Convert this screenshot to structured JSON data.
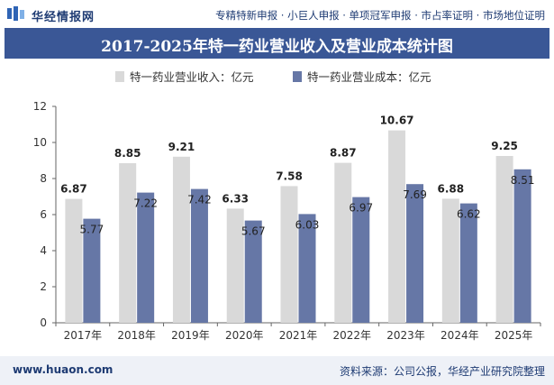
{
  "header": {
    "logo_text": "华经情报网",
    "tagline": "专精特新申报 · 小巨人申报 · 单项冠军申报 · 市占率证明 · 市场地位证明"
  },
  "chart_data": {
    "type": "bar",
    "title": "2017-2025年特一药业营业收入及营业成本统计图",
    "categories": [
      "2017年",
      "2018年",
      "2019年",
      "2020年",
      "2021年",
      "2022年",
      "2023年",
      "2024年",
      "2025年"
    ],
    "series": [
      {
        "name": "特一药业营业收入：亿元",
        "color": "#d9d9d9",
        "values": [
          6.87,
          8.85,
          9.21,
          6.33,
          7.58,
          8.87,
          10.67,
          6.88,
          9.25
        ]
      },
      {
        "name": "特一药业营业成本：亿元",
        "color": "#6677a6",
        "values": [
          5.77,
          7.22,
          7.42,
          5.67,
          6.03,
          6.97,
          7.69,
          6.62,
          8.51
        ]
      }
    ],
    "ylim": [
      0,
      12
    ],
    "yticks": [
      0,
      2,
      4,
      6,
      8,
      10,
      12
    ],
    "legend_position": "top",
    "grid": false
  },
  "footer": {
    "url": "www.huaon.com",
    "source": "资料来源：公司公报，华经产业研究院整理"
  }
}
